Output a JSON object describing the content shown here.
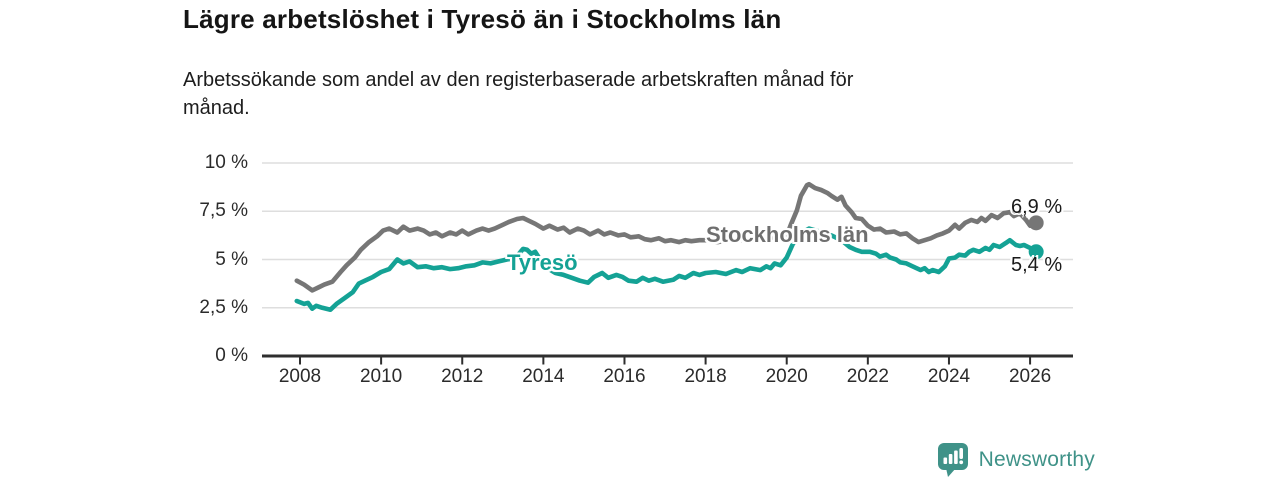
{
  "header": {
    "title": "Lägre arbetslöshet i Tyresö än i Stockholms län",
    "subtitle_line1": "Arbetssökande som andel av den registerbaserade arbetskraften månad för",
    "subtitle_line2": "månad."
  },
  "chart_data": {
    "type": "line",
    "title": "Lägre arbetslöshet i Tyresö än i Stockholms län",
    "subtitle": "Arbetssökande som andel av den registerbaserade arbetskraften månad för månad.",
    "xlabel": "",
    "ylabel": "",
    "xlim": [
      2007.05,
      2027.1
    ],
    "ylim": [
      0,
      10
    ],
    "grid": "horizontal-only",
    "legend_position": "inline-labels-on-lines",
    "x_ticks": [
      2008,
      2010,
      2012,
      2014,
      2016,
      2018,
      2020,
      2022,
      2024,
      2026
    ],
    "x_tick_labels": [
      "2008",
      "2010",
      "2012",
      "2014",
      "2016",
      "2018",
      "2020",
      "2022",
      "2024",
      "2026"
    ],
    "y_ticks": [
      0,
      2.5,
      5,
      7.5,
      10
    ],
    "y_tick_labels": [
      "0 %",
      "2,5 %",
      "5 %",
      "7,5 %",
      "10 %"
    ],
    "style": {
      "grid_color": "#dedede",
      "axis_color": "#2e2e2e",
      "background": "#ffffff"
    },
    "series": [
      {
        "name": "Stockholms län",
        "color": "#767676",
        "label_color": "#6f6f6f",
        "end_label": "6,9 %",
        "end_value": 6.9,
        "points": [
          [
            2007.92,
            3.9
          ],
          [
            2008.1,
            3.7
          ],
          [
            2008.3,
            3.4
          ],
          [
            2008.45,
            3.55
          ],
          [
            2008.6,
            3.7
          ],
          [
            2008.8,
            3.85
          ],
          [
            2009.0,
            4.35
          ],
          [
            2009.15,
            4.7
          ],
          [
            2009.35,
            5.1
          ],
          [
            2009.5,
            5.5
          ],
          [
            2009.7,
            5.9
          ],
          [
            2009.9,
            6.2
          ],
          [
            2010.05,
            6.5
          ],
          [
            2010.2,
            6.6
          ],
          [
            2010.4,
            6.4
          ],
          [
            2010.55,
            6.7
          ],
          [
            2010.7,
            6.5
          ],
          [
            2010.9,
            6.6
          ],
          [
            2011.05,
            6.5
          ],
          [
            2011.2,
            6.3
          ],
          [
            2011.35,
            6.4
          ],
          [
            2011.5,
            6.2
          ],
          [
            2011.7,
            6.4
          ],
          [
            2011.85,
            6.3
          ],
          [
            2012.0,
            6.5
          ],
          [
            2012.15,
            6.3
          ],
          [
            2012.35,
            6.5
          ],
          [
            2012.5,
            6.6
          ],
          [
            2012.65,
            6.5
          ],
          [
            2012.8,
            6.6
          ],
          [
            2013.0,
            6.8
          ],
          [
            2013.15,
            6.95
          ],
          [
            2013.35,
            7.1
          ],
          [
            2013.5,
            7.15
          ],
          [
            2013.65,
            7.0
          ],
          [
            2013.8,
            6.85
          ],
          [
            2014.0,
            6.6
          ],
          [
            2014.15,
            6.75
          ],
          [
            2014.35,
            6.55
          ],
          [
            2014.5,
            6.65
          ],
          [
            2014.65,
            6.4
          ],
          [
            2014.85,
            6.6
          ],
          [
            2015.0,
            6.5
          ],
          [
            2015.15,
            6.3
          ],
          [
            2015.35,
            6.5
          ],
          [
            2015.5,
            6.3
          ],
          [
            2015.65,
            6.4
          ],
          [
            2015.85,
            6.25
          ],
          [
            2016.0,
            6.3
          ],
          [
            2016.15,
            6.15
          ],
          [
            2016.35,
            6.2
          ],
          [
            2016.5,
            6.05
          ],
          [
            2016.65,
            6.0
          ],
          [
            2016.85,
            6.1
          ],
          [
            2017.0,
            5.95
          ],
          [
            2017.15,
            6.0
          ],
          [
            2017.35,
            5.9
          ],
          [
            2017.5,
            6.0
          ],
          [
            2017.65,
            5.95
          ],
          [
            2017.85,
            6.0
          ],
          [
            2018.0,
            6.0
          ],
          [
            2018.3,
            5.9
          ],
          [
            2018.5,
            6.0
          ],
          [
            2018.65,
            5.95
          ],
          [
            2018.85,
            6.0
          ],
          [
            2019.0,
            6.05
          ],
          [
            2019.15,
            6.0
          ],
          [
            2019.35,
            6.1
          ],
          [
            2019.5,
            6.05
          ],
          [
            2019.65,
            6.15
          ],
          [
            2019.85,
            6.1
          ],
          [
            2020.0,
            6.25
          ],
          [
            2020.1,
            6.8
          ],
          [
            2020.25,
            7.55
          ],
          [
            2020.35,
            8.3
          ],
          [
            2020.5,
            8.85
          ],
          [
            2020.55,
            8.9
          ],
          [
            2020.7,
            8.7
          ],
          [
            2020.85,
            8.6
          ],
          [
            2021.0,
            8.45
          ],
          [
            2021.1,
            8.3
          ],
          [
            2021.25,
            8.1
          ],
          [
            2021.35,
            8.25
          ],
          [
            2021.45,
            7.8
          ],
          [
            2021.6,
            7.45
          ],
          [
            2021.7,
            7.15
          ],
          [
            2021.85,
            7.1
          ],
          [
            2022.0,
            6.75
          ],
          [
            2022.15,
            6.55
          ],
          [
            2022.3,
            6.6
          ],
          [
            2022.45,
            6.4
          ],
          [
            2022.65,
            6.45
          ],
          [
            2022.8,
            6.3
          ],
          [
            2022.95,
            6.35
          ],
          [
            2023.1,
            6.1
          ],
          [
            2023.25,
            5.9
          ],
          [
            2023.4,
            6.0
          ],
          [
            2023.55,
            6.1
          ],
          [
            2023.7,
            6.25
          ],
          [
            2023.85,
            6.35
          ],
          [
            2024.0,
            6.5
          ],
          [
            2024.15,
            6.8
          ],
          [
            2024.25,
            6.6
          ],
          [
            2024.4,
            6.9
          ],
          [
            2024.55,
            7.05
          ],
          [
            2024.7,
            6.95
          ],
          [
            2024.8,
            7.15
          ],
          [
            2024.9,
            7.0
          ],
          [
            2025.05,
            7.3
          ],
          [
            2025.2,
            7.15
          ],
          [
            2025.35,
            7.4
          ],
          [
            2025.5,
            7.45
          ],
          [
            2025.6,
            7.25
          ],
          [
            2025.75,
            7.4
          ],
          [
            2025.9,
            7.05
          ],
          [
            2026.0,
            6.75
          ],
          [
            2026.15,
            6.9
          ]
        ]
      },
      {
        "name": "Tyresö",
        "color": "#14a295",
        "label_color": "#14a295",
        "end_label": "5,4 %",
        "end_value": 5.4,
        "points": [
          [
            2007.92,
            2.85
          ],
          [
            2008.1,
            2.7
          ],
          [
            2008.2,
            2.75
          ],
          [
            2008.3,
            2.45
          ],
          [
            2008.4,
            2.6
          ],
          [
            2008.55,
            2.5
          ],
          [
            2008.75,
            2.4
          ],
          [
            2008.9,
            2.7
          ],
          [
            2009.1,
            3.0
          ],
          [
            2009.3,
            3.3
          ],
          [
            2009.45,
            3.75
          ],
          [
            2009.6,
            3.9
          ],
          [
            2009.8,
            4.1
          ],
          [
            2010.0,
            4.35
          ],
          [
            2010.2,
            4.5
          ],
          [
            2010.4,
            5.0
          ],
          [
            2010.55,
            4.8
          ],
          [
            2010.7,
            4.9
          ],
          [
            2010.9,
            4.6
          ],
          [
            2011.1,
            4.65
          ],
          [
            2011.3,
            4.55
          ],
          [
            2011.5,
            4.6
          ],
          [
            2011.7,
            4.5
          ],
          [
            2011.9,
            4.55
          ],
          [
            2012.1,
            4.65
          ],
          [
            2012.3,
            4.7
          ],
          [
            2012.5,
            4.85
          ],
          [
            2012.7,
            4.8
          ],
          [
            2012.9,
            4.9
          ],
          [
            2013.1,
            5.0
          ],
          [
            2013.3,
            5.05
          ],
          [
            2013.5,
            5.55
          ],
          [
            2013.6,
            5.5
          ],
          [
            2013.7,
            5.3
          ],
          [
            2013.8,
            5.4
          ],
          [
            2013.95,
            4.9
          ],
          [
            2014.1,
            4.55
          ],
          [
            2014.3,
            4.3
          ],
          [
            2014.5,
            4.2
          ],
          [
            2014.7,
            4.05
          ],
          [
            2014.9,
            3.9
          ],
          [
            2015.1,
            3.8
          ],
          [
            2015.25,
            4.1
          ],
          [
            2015.45,
            4.3
          ],
          [
            2015.6,
            4.05
          ],
          [
            2015.8,
            4.2
          ],
          [
            2015.95,
            4.1
          ],
          [
            2016.1,
            3.9
          ],
          [
            2016.3,
            3.85
          ],
          [
            2016.45,
            4.05
          ],
          [
            2016.6,
            3.9
          ],
          [
            2016.75,
            4.0
          ],
          [
            2016.95,
            3.85
          ],
          [
            2017.2,
            3.95
          ],
          [
            2017.35,
            4.15
          ],
          [
            2017.5,
            4.05
          ],
          [
            2017.7,
            4.3
          ],
          [
            2017.85,
            4.2
          ],
          [
            2018.0,
            4.3
          ],
          [
            2018.25,
            4.35
          ],
          [
            2018.5,
            4.25
          ],
          [
            2018.75,
            4.45
          ],
          [
            2018.9,
            4.35
          ],
          [
            2019.1,
            4.55
          ],
          [
            2019.35,
            4.45
          ],
          [
            2019.5,
            4.65
          ],
          [
            2019.6,
            4.55
          ],
          [
            2019.7,
            4.8
          ],
          [
            2019.85,
            4.7
          ],
          [
            2020.0,
            5.1
          ],
          [
            2020.15,
            5.8
          ],
          [
            2020.3,
            6.3
          ],
          [
            2020.55,
            6.6
          ],
          [
            2020.8,
            6.45
          ],
          [
            2021.05,
            6.3
          ],
          [
            2021.35,
            6.0
          ],
          [
            2021.55,
            5.65
          ],
          [
            2021.7,
            5.5
          ],
          [
            2021.85,
            5.4
          ],
          [
            2022.05,
            5.4
          ],
          [
            2022.2,
            5.3
          ],
          [
            2022.3,
            5.15
          ],
          [
            2022.45,
            5.25
          ],
          [
            2022.55,
            5.1
          ],
          [
            2022.7,
            5.0
          ],
          [
            2022.8,
            4.85
          ],
          [
            2022.95,
            4.8
          ],
          [
            2023.1,
            4.65
          ],
          [
            2023.3,
            4.45
          ],
          [
            2023.4,
            4.55
          ],
          [
            2023.5,
            4.35
          ],
          [
            2023.6,
            4.45
          ],
          [
            2023.75,
            4.35
          ],
          [
            2023.9,
            4.65
          ],
          [
            2024.0,
            5.05
          ],
          [
            2024.15,
            5.1
          ],
          [
            2024.25,
            5.25
          ],
          [
            2024.4,
            5.2
          ],
          [
            2024.5,
            5.4
          ],
          [
            2024.6,
            5.5
          ],
          [
            2024.75,
            5.4
          ],
          [
            2024.9,
            5.6
          ],
          [
            2025.0,
            5.5
          ],
          [
            2025.1,
            5.75
          ],
          [
            2025.25,
            5.65
          ],
          [
            2025.4,
            5.85
          ],
          [
            2025.5,
            6.0
          ],
          [
            2025.65,
            5.75
          ],
          [
            2025.75,
            5.7
          ],
          [
            2025.85,
            5.75
          ],
          [
            2026.0,
            5.6
          ],
          [
            2026.15,
            5.4
          ]
        ]
      }
    ]
  },
  "footer": {
    "brand": "Newsworthy",
    "logo_icon": "newsworthy-chart-pin-icon",
    "brand_color": "#3f9288"
  }
}
